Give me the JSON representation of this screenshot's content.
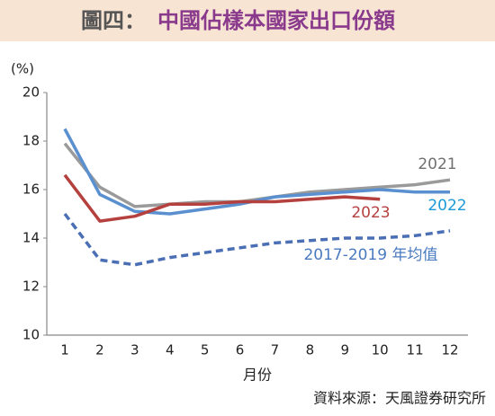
{
  "chart_data": {
    "type": "line",
    "figure_label": "圖四：",
    "title": "中國佔樣本國家出口份額",
    "y_label": "(%)",
    "x_label": "月份",
    "source": "資料來源：天風證券研究所",
    "categories": [
      "1",
      "2",
      "3",
      "4",
      "5",
      "6",
      "7",
      "8",
      "9",
      "10",
      "11",
      "12"
    ],
    "ylim": [
      10,
      20
    ],
    "yticks": [
      10,
      12,
      14,
      16,
      18,
      20
    ],
    "grid": false,
    "series": [
      {
        "name": "2021",
        "color": "#9a9a9a",
        "label_color": "#707070",
        "dash": false,
        "values": [
          17.9,
          16.1,
          15.3,
          15.4,
          15.5,
          15.5,
          15.7,
          15.9,
          16.0,
          16.1,
          16.2,
          16.4
        ]
      },
      {
        "name": "2022",
        "color": "#5a8fd0",
        "label_color": "#1e9ad6",
        "dash": false,
        "values": [
          18.5,
          15.8,
          15.1,
          15.0,
          15.2,
          15.4,
          15.7,
          15.8,
          15.9,
          16.0,
          15.9,
          15.9
        ]
      },
      {
        "name": "2023",
        "color": "#b5413f",
        "label_color": "#b5413f",
        "dash": false,
        "values": [
          16.6,
          14.7,
          14.9,
          15.4,
          15.4,
          15.5,
          15.5,
          15.6,
          15.7,
          15.6,
          null,
          null
        ]
      },
      {
        "name": "2017-2019 年均值",
        "color": "#4a6fb5",
        "label_color": "#4a7ac0",
        "dash": true,
        "values": [
          15.0,
          13.1,
          12.9,
          13.2,
          13.4,
          13.6,
          13.8,
          13.9,
          14.0,
          14.0,
          14.1,
          14.3
        ]
      }
    ]
  }
}
